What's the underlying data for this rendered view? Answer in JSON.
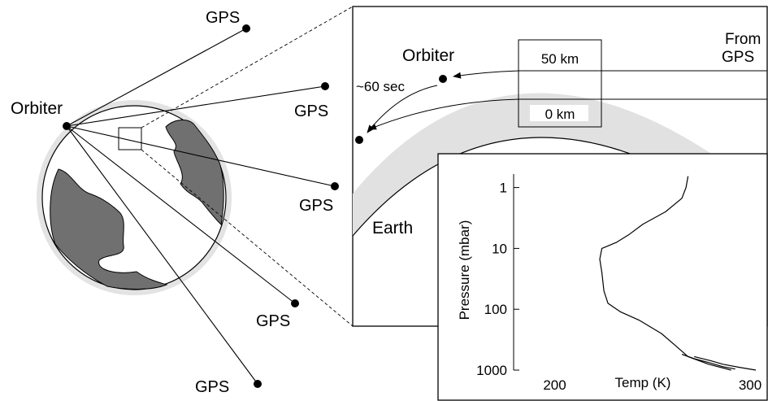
{
  "labels": {
    "gps": "GPS",
    "orbiter": "Orbiter",
    "orbiter_zoom": "Orbiter",
    "from_line1": "From",
    "from_line2": "GPS",
    "top_height": "50 km",
    "bottom_height": "0 km",
    "time": "~60 sec",
    "earth": "Earth"
  },
  "chart_data": {
    "type": "line",
    "xlabel": "Temp (K)",
    "ylabel": "Pressure (mbar)",
    "xlim": [
      180,
      300
    ],
    "ylim": [
      1000,
      0.6
    ],
    "y_scale": "log",
    "x_ticks": [
      200,
      300
    ],
    "y_ticks": [
      1,
      10,
      100,
      1000
    ],
    "series": [
      {
        "values": [
          {
            "x": 265,
            "p": 0.65
          },
          {
            "x": 264,
            "p": 1.0
          },
          {
            "x": 262,
            "p": 1.5
          },
          {
            "x": 254,
            "p": 2.5
          },
          {
            "x": 243,
            "p": 4.0
          },
          {
            "x": 236,
            "p": 6.0
          },
          {
            "x": 230,
            "p": 8.0
          },
          {
            "x": 223,
            "p": 10
          },
          {
            "x": 222,
            "p": 15
          },
          {
            "x": 223,
            "p": 25
          },
          {
            "x": 224,
            "p": 50
          },
          {
            "x": 226,
            "p": 80
          },
          {
            "x": 232,
            "p": 110
          },
          {
            "x": 241,
            "p": 150
          },
          {
            "x": 252,
            "p": 250
          },
          {
            "x": 259,
            "p": 400
          },
          {
            "x": 265,
            "p": 600
          },
          {
            "x": 275,
            "p": 800
          },
          {
            "x": 286,
            "p": 1000
          }
        ]
      },
      {
        "values": [
          {
            "x": 268,
            "p": 600
          },
          {
            "x": 276,
            "p": 700
          },
          {
            "x": 282,
            "p": 800
          },
          {
            "x": 290,
            "p": 900
          },
          {
            "x": 298,
            "p": 1000
          }
        ]
      },
      {
        "values": [
          {
            "x": 262,
            "p": 550
          },
          {
            "x": 268,
            "p": 650
          },
          {
            "x": 275,
            "p": 750
          },
          {
            "x": 282,
            "p": 880
          },
          {
            "x": 288,
            "p": 960
          }
        ]
      }
    ]
  }
}
